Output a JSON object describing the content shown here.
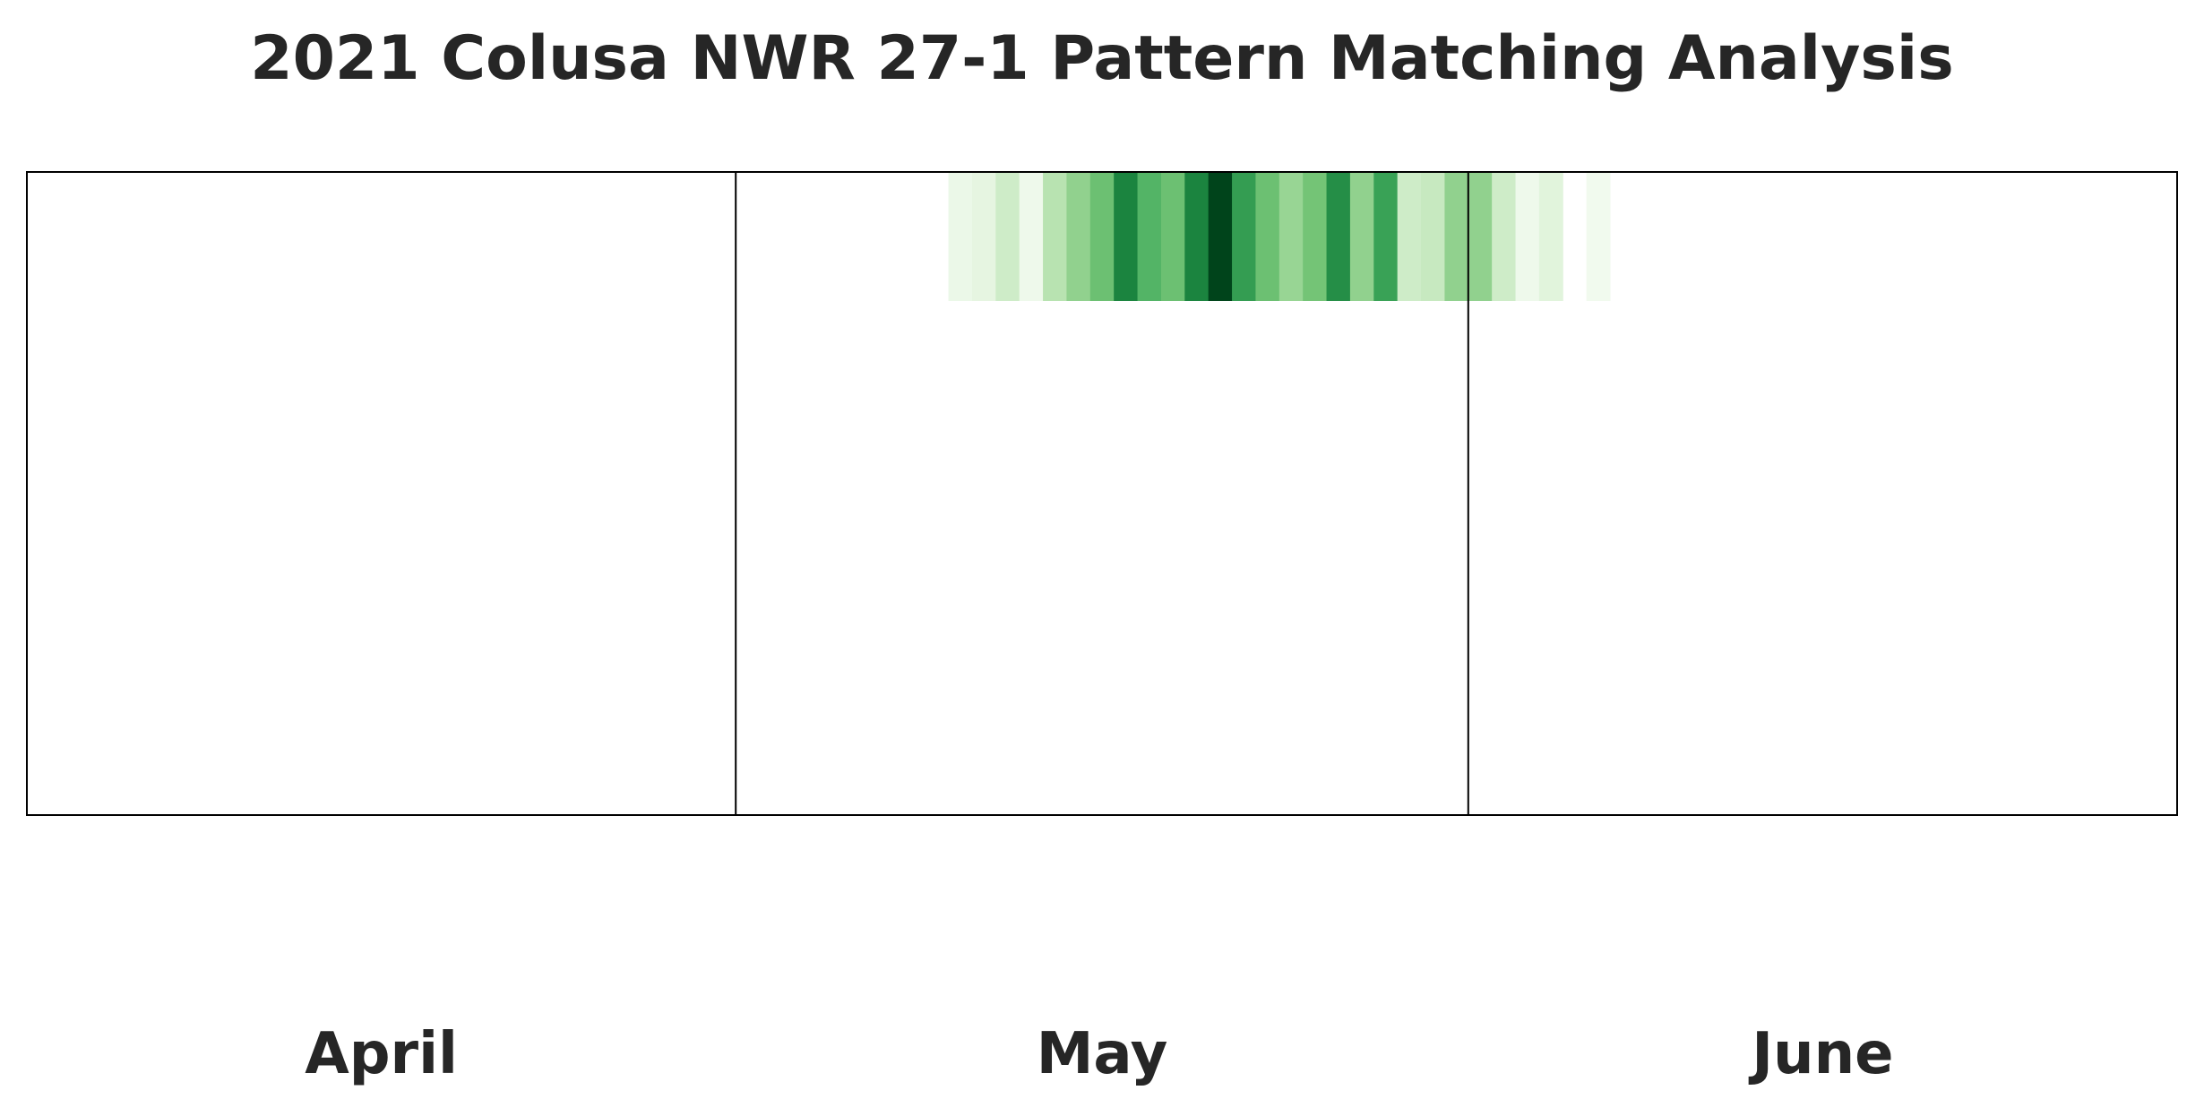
{
  "chart_data": {
    "type": "heatmap",
    "title": "2021 Colusa NWR 27-1 Pattern Matching Analysis",
    "xlabel": "",
    "ylabel": "",
    "x_axis": {
      "type": "date",
      "range": [
        "2021-04-01",
        "2021-06-30"
      ],
      "month_labels": [
        "April",
        "May",
        "June"
      ],
      "month_boundaries": [
        "2021-05-01",
        "2021-06-01"
      ]
    },
    "rows": 1,
    "colormap": "Greens",
    "grid": false,
    "legend": "none",
    "cells": [
      {
        "date": "2021-05-10",
        "value": 0.08
      },
      {
        "date": "2021-05-11",
        "value": 0.12
      },
      {
        "date": "2021-05-12",
        "value": 0.22
      },
      {
        "date": "2021-05-13",
        "value": 0.06
      },
      {
        "date": "2021-05-14",
        "value": 0.3
      },
      {
        "date": "2021-05-15",
        "value": 0.42
      },
      {
        "date": "2021-05-16",
        "value": 0.52
      },
      {
        "date": "2021-05-17",
        "value": 0.78
      },
      {
        "date": "2021-05-18",
        "value": 0.58
      },
      {
        "date": "2021-05-19",
        "value": 0.52
      },
      {
        "date": "2021-05-20",
        "value": 0.78
      },
      {
        "date": "2021-05-21",
        "value": 1.0
      },
      {
        "date": "2021-05-22",
        "value": 0.68
      },
      {
        "date": "2021-05-23",
        "value": 0.52
      },
      {
        "date": "2021-05-24",
        "value": 0.4
      },
      {
        "date": "2021-05-25",
        "value": 0.5
      },
      {
        "date": "2021-05-26",
        "value": 0.74
      },
      {
        "date": "2021-05-27",
        "value": 0.42
      },
      {
        "date": "2021-05-28",
        "value": 0.66
      },
      {
        "date": "2021-05-29",
        "value": 0.22
      },
      {
        "date": "2021-05-30",
        "value": 0.25
      },
      {
        "date": "2021-05-31",
        "value": 0.42
      },
      {
        "date": "2021-06-01",
        "value": 0.42
      },
      {
        "date": "2021-06-02",
        "value": 0.22
      },
      {
        "date": "2021-06-03",
        "value": 0.06
      },
      {
        "date": "2021-06-04",
        "value": 0.14
      },
      {
        "date": "2021-06-06",
        "value": 0.04
      }
    ]
  }
}
